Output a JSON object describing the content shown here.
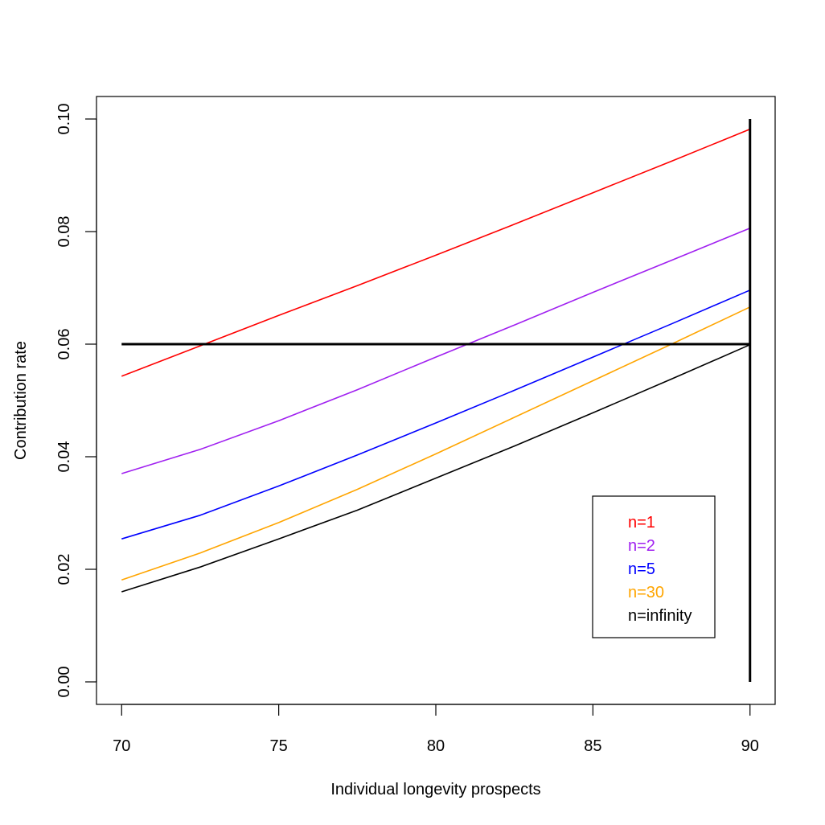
{
  "chart_data": {
    "type": "line",
    "title": "",
    "xlabel": "Individual longevity prospects",
    "ylabel": "Contribution rate",
    "xlim": [
      69.2,
      90.8
    ],
    "ylim": [
      -0.004,
      0.104
    ],
    "x_ticks": [
      70,
      75,
      80,
      85,
      90
    ],
    "y_ticks": [
      0.0,
      0.02,
      0.04,
      0.06,
      0.08,
      0.1
    ],
    "x_tick_labels": [
      "70",
      "75",
      "80",
      "85",
      "90"
    ],
    "y_tick_labels": [
      "0.00",
      "0.02",
      "0.04",
      "0.06",
      "0.08",
      "0.10"
    ],
    "grid": false,
    "legend_position": "bottom-right",
    "x": [
      70,
      72.5,
      75,
      77.5,
      80,
      82.5,
      85,
      87.5,
      90
    ],
    "series": [
      {
        "name": "n=1",
        "color": "#ff0000",
        "values": [
          0.0543,
          0.0597,
          0.0651,
          0.0704,
          0.0758,
          0.0813,
          0.0869,
          0.0925,
          0.0982
        ]
      },
      {
        "name": "n=2",
        "color": "#a020f0",
        "values": [
          0.037,
          0.0413,
          0.0464,
          0.0519,
          0.0577,
          0.0634,
          0.0692,
          0.0749,
          0.0806
        ]
      },
      {
        "name": "n=5",
        "color": "#0000ff",
        "values": [
          0.0254,
          0.0296,
          0.0348,
          0.0403,
          0.046,
          0.0518,
          0.0577,
          0.0636,
          0.0696
        ]
      },
      {
        "name": "n=30",
        "color": "#ffa500",
        "values": [
          0.0181,
          0.0229,
          0.0283,
          0.0342,
          0.0405,
          0.047,
          0.0535,
          0.06,
          0.0666
        ]
      },
      {
        "name": "n=infinity",
        "color": "#000000",
        "values": [
          0.016,
          0.0204,
          0.0254,
          0.0305,
          0.0362,
          0.0419,
          0.0478,
          0.0538,
          0.0599
        ]
      }
    ],
    "reference_lines": [
      {
        "orientation": "horizontal",
        "y": 0.06,
        "x_from": 70,
        "x_to": 90,
        "color": "#000000"
      },
      {
        "orientation": "vertical",
        "x": 90,
        "y_from": 0.0,
        "y_to": 0.1,
        "color": "#000000"
      }
    ]
  }
}
